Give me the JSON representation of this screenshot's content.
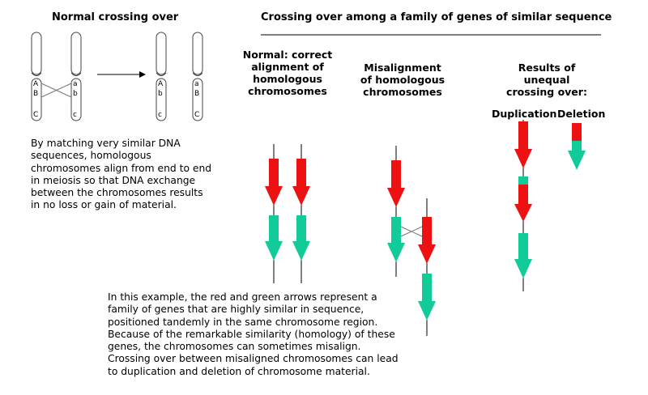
{
  "left_title": "Normal crossing over",
  "right_title": "Crossing over among a family of genes of similar sequence",
  "chromosome_labels": {
    "left_pair_a": [
      "A",
      "B",
      "C"
    ],
    "left_pair_b": [
      "a",
      "b",
      "c"
    ],
    "right_pair_a": [
      "A",
      "b",
      "c"
    ],
    "right_pair_b": [
      "a",
      "B",
      "C"
    ]
  },
  "left_description": "By  matching very similar DNA\nsequences, homologous\nchromosomes align from end to end\nin meiosis so that DNA exchange\nbetween the chromosomes results\nin no loss or gain of material.",
  "normal_header": "Normal: correct\nalignment of\nhomologous\nchromosomes",
  "misalignment_header": "Misalignment\nof homologous\nchromosomes",
  "results_header": "Results of\nunequal\ncrossing over:",
  "duplication_label": "Duplication",
  "deletion_label": "Deletion",
  "bottom_description": "In this example, the red and green arrows represent a\nfamily of genes that are highly similar in sequence,\npositioned tandemly in the same chromosome region.\nBecause of the remarkable similarity (homology) of these\ngenes, the chromosomes can sometimes misalign.\nCrossing over between misaligned chromosomes can lead\nto duplication and deletion of chromosome material.",
  "colors": {
    "red_gene": "#ee1111",
    "green_gene": "#11cc99"
  }
}
